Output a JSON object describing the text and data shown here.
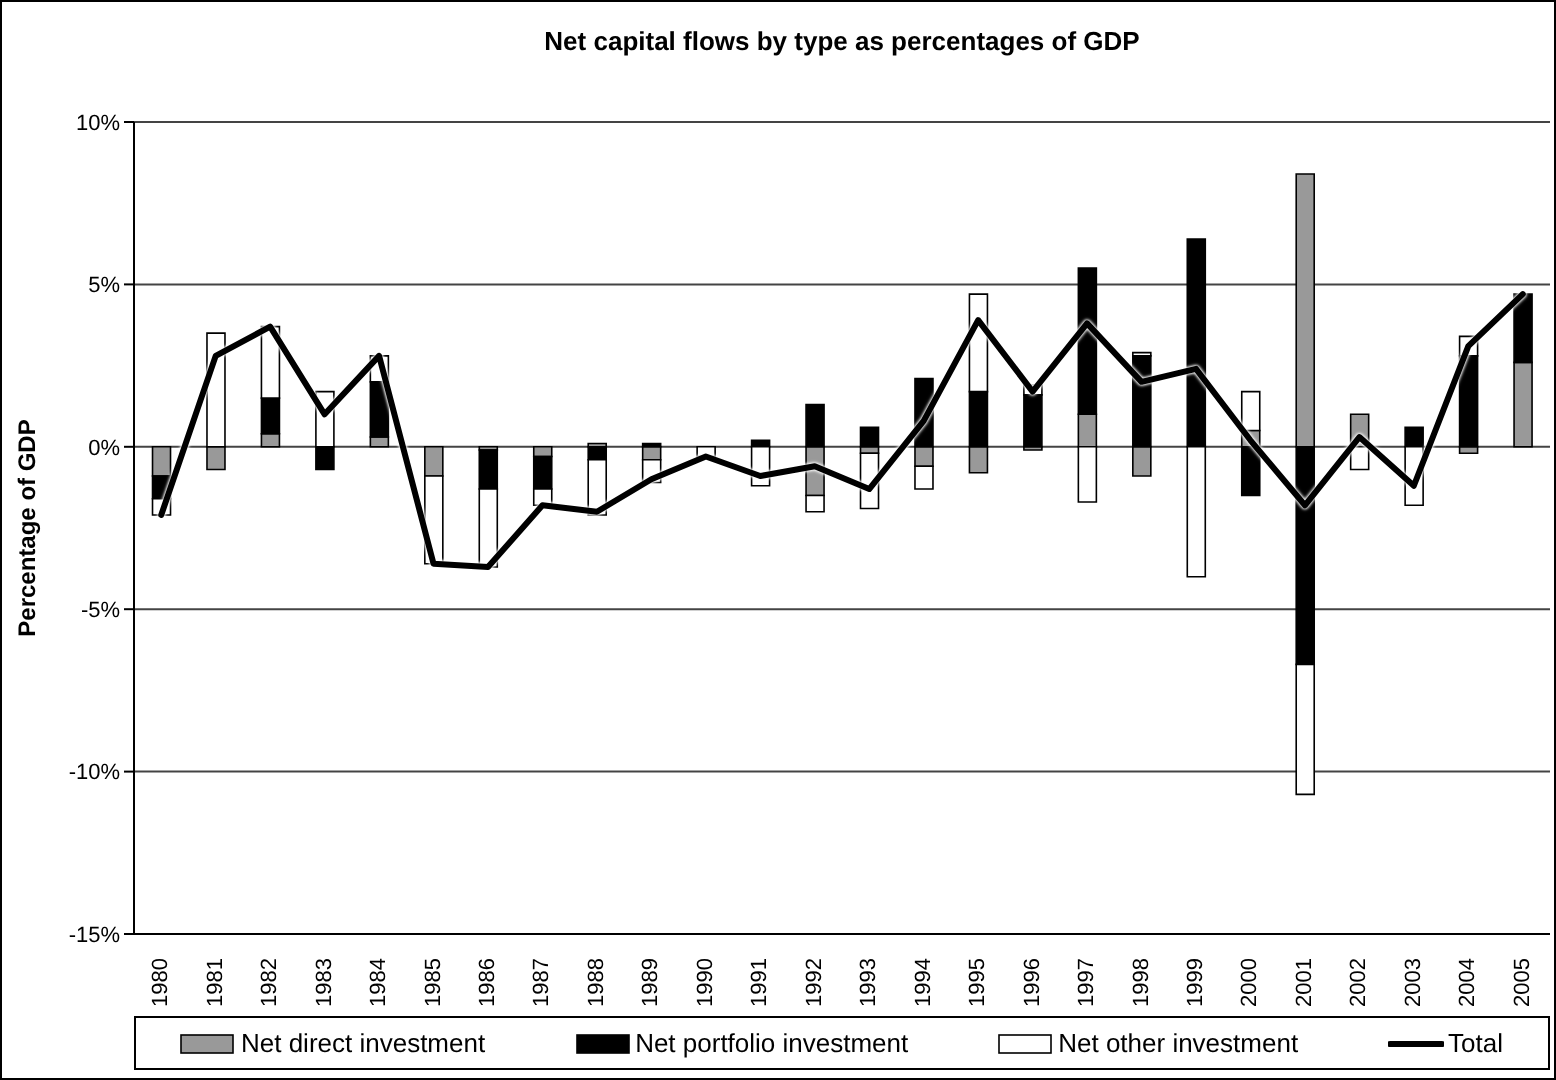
{
  "chart_data": {
    "type": "bar",
    "title": "Net capital flows by type as percentages of GDP",
    "ylabel": "Percentage of GDP",
    "categories": [
      "1980",
      "1981",
      "1982",
      "1983",
      "1984",
      "1985",
      "1986",
      "1987",
      "1988",
      "1989",
      "1990",
      "1991",
      "1992",
      "1993",
      "1994",
      "1995",
      "1996",
      "1997",
      "1998",
      "1999",
      "2000",
      "2001",
      "2002",
      "2003",
      "2004",
      "2005"
    ],
    "stacked": true,
    "series": [
      {
        "name": "Net direct investment",
        "color": "#999999",
        "values": [
          -0.9,
          -0.7,
          0.4,
          0,
          0.3,
          -0.9,
          -0.1,
          -0.3,
          0.1,
          -0.4,
          0,
          0,
          -1.5,
          -0.2,
          -0.6,
          -0.8,
          -0.1,
          1.0,
          -0.9,
          0,
          0.5,
          8.4,
          1.0,
          0,
          -0.2,
          2.6
        ]
      },
      {
        "name": "Net portfolio investment",
        "color": "#000000",
        "values": [
          -0.7,
          0,
          1.1,
          -0.7,
          1.7,
          0,
          -1.2,
          -1.0,
          -0.4,
          0.1,
          0,
          0.2,
          1.3,
          0.6,
          2.1,
          1.7,
          1.6,
          4.5,
          2.8,
          6.4,
          -1.5,
          -6.7,
          0,
          0.6,
          2.8,
          2.1
        ]
      },
      {
        "name": "Net other investment",
        "color": "#ffffff",
        "values": [
          -0.5,
          3.5,
          2.2,
          1.7,
          0.8,
          -2.7,
          -2.4,
          -0.5,
          -1.7,
          -0.7,
          -0.3,
          -1.2,
          -0.5,
          -1.7,
          -0.7,
          3.0,
          0.3,
          -1.7,
          0.1,
          -4.0,
          1.2,
          -4.0,
          -0.7,
          -1.8,
          0.6,
          0
        ]
      },
      {
        "name": "Total",
        "type": "line",
        "color": "#000000",
        "values": [
          -2.1,
          2.8,
          3.7,
          1.0,
          2.8,
          -3.6,
          -3.7,
          -1.8,
          -2.0,
          -1.0,
          -0.3,
          -0.9,
          -0.6,
          -1.3,
          0.8,
          3.9,
          1.7,
          3.8,
          2.0,
          2.4,
          0.2,
          -1.8,
          0.3,
          -1.2,
          3.1,
          4.7
        ]
      }
    ],
    "ylim": [
      -15,
      10
    ],
    "yticks": [
      {
        "value": -15,
        "label": "-15%"
      },
      {
        "value": -10,
        "label": "-10%"
      },
      {
        "value": -5,
        "label": "-5%"
      },
      {
        "value": 0,
        "label": "0%"
      },
      {
        "value": 5,
        "label": "5%"
      },
      {
        "value": 10,
        "label": "10%"
      }
    ],
    "grid": "y",
    "legend": "bottom",
    "marker": "none"
  }
}
